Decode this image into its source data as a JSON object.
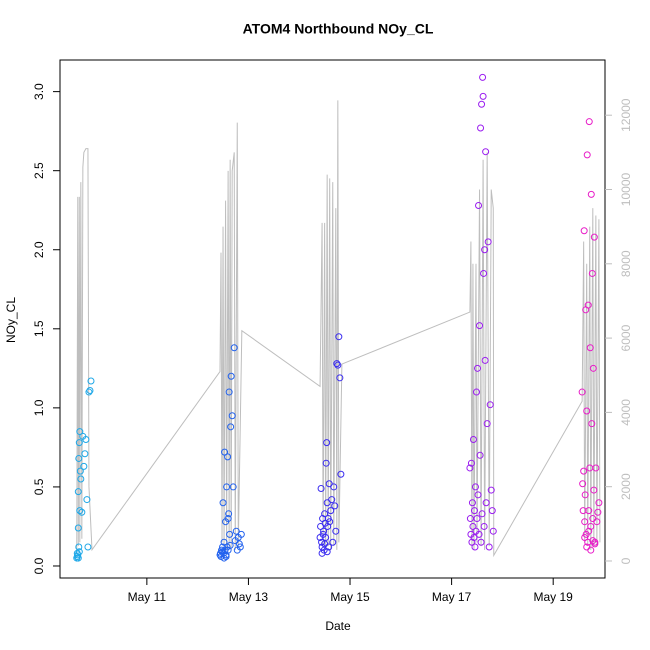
{
  "chart_data": {
    "type": "scatter",
    "title": "ATOM4 Northbound NOy_CL",
    "x_label": "Date",
    "y_label": "NOy_CL",
    "xlim": [
      9.29,
      20.02
    ],
    "ylim": [
      -0.076,
      3.2
    ],
    "y2lim": [
      -458,
      13486
    ],
    "xticks": [
      {
        "value": 11,
        "label": "May 11"
      },
      {
        "value": 13,
        "label": "May 13"
      },
      {
        "value": 15,
        "label": "May 15"
      },
      {
        "value": 17,
        "label": "May 17"
      },
      {
        "value": 19,
        "label": "May 19"
      }
    ],
    "yticks": [
      {
        "value": 0,
        "label": "0.0"
      },
      0.5,
      {
        "value": 1,
        "label": "1.0"
      },
      1.5,
      {
        "value": 2,
        "label": "2.0"
      },
      2.5,
      {
        "value": 3,
        "label": "3.0"
      }
    ],
    "y2ticks": [
      0,
      2000,
      4000,
      6000,
      8000,
      10000,
      12000
    ],
    "series": [
      {
        "type": "line",
        "axis": "y2",
        "color": "#bebebe",
        "x": [
          9.62,
          9.64,
          9.65,
          9.67,
          9.68,
          9.7,
          9.72,
          9.74,
          9.76,
          9.8,
          9.84,
          9.86,
          9.92,
          12.44,
          12.46,
          12.48,
          12.5,
          12.52,
          12.55,
          12.57,
          12.6,
          12.62,
          12.64,
          12.66,
          12.68,
          12.72,
          12.74,
          12.78,
          12.8,
          12.87,
          14.41,
          14.45,
          14.47,
          14.5,
          14.52,
          14.55,
          14.57,
          14.6,
          14.62,
          14.66,
          14.68,
          14.72,
          14.74,
          14.76,
          14.78,
          14.84,
          17.36,
          17.38,
          17.4,
          17.42,
          17.44,
          17.48,
          17.5,
          17.55,
          17.58,
          17.62,
          17.65,
          17.7,
          17.74,
          17.78,
          17.82,
          17.83,
          19.57,
          19.6,
          19.62,
          19.66,
          19.68,
          19.72,
          19.74,
          19.78,
          19.8,
          19.84,
          19.86,
          19.9,
          19.92
        ],
        "values": [
          300,
          9800,
          400,
          9800,
          500,
          10200,
          600,
          10600,
          11000,
          11100,
          11100,
          2000,
          300,
          5100,
          8300,
          500,
          9000,
          400,
          9700,
          300,
          10500,
          400,
          10800,
          300,
          10500,
          11000,
          300,
          11800,
          400,
          6200,
          4700,
          9100,
          400,
          9100,
          300,
          10400,
          400,
          10300,
          300,
          10200,
          400,
          9500,
          300,
          12400,
          500,
          5300,
          6700,
          8600,
          400,
          8000,
          300,
          8000,
          500,
          10000,
          400,
          10800,
          300,
          11000,
          400,
          10000,
          9500,
          150,
          4300,
          8600,
          500,
          8000,
          400,
          9000,
          300,
          9500,
          400,
          9300,
          400,
          9200,
          500
        ]
      },
      {
        "color": "#1ea8e8",
        "x": [
          9.62,
          9.63,
          9.63,
          9.64,
          9.65,
          9.65,
          9.66,
          9.67,
          9.68,
          9.69,
          9.7,
          9.72,
          9.74,
          9.76,
          9.78,
          9.8,
          9.82,
          9.84,
          9.86,
          9.88,
          9.9,
          9.65,
          9.66,
          9.67,
          9.68
        ],
        "values": [
          0.05,
          0.06,
          0.08,
          0.07,
          0.24,
          0.47,
          0.68,
          0.78,
          0.85,
          0.6,
          0.55,
          0.34,
          0.82,
          0.63,
          0.71,
          0.8,
          0.42,
          0.12,
          1.1,
          1.11,
          1.17,
          0.05,
          0.12,
          0.09,
          0.35
        ]
      },
      {
        "color": "#2262ee",
        "x": [
          12.44,
          12.45,
          12.46,
          12.47,
          12.48,
          12.49,
          12.5,
          12.51,
          12.52,
          12.53,
          12.54,
          12.55,
          12.56,
          12.57,
          12.58,
          12.59,
          12.6,
          12.61,
          12.62,
          12.63,
          12.64,
          12.65,
          12.66,
          12.68,
          12.7,
          12.72,
          12.74,
          12.76,
          12.78,
          12.8,
          12.82,
          12.84,
          12.86,
          12.52,
          12.56,
          12.6
        ],
        "values": [
          0.07,
          0.08,
          0.06,
          0.1,
          0.09,
          0.12,
          0.4,
          0.08,
          0.15,
          0.72,
          0.1,
          0.28,
          0.07,
          0.5,
          0.12,
          0.69,
          0.1,
          0.33,
          1.1,
          0.2,
          0.13,
          0.88,
          1.2,
          0.95,
          0.5,
          1.38,
          0.16,
          0.22,
          0.1,
          0.18,
          0.14,
          0.12,
          0.2,
          0.05,
          0.06,
          0.3
        ]
      },
      {
        "color": "#3a2cf0",
        "x": [
          14.41,
          14.42,
          14.43,
          14.44,
          14.45,
          14.46,
          14.47,
          14.48,
          14.49,
          14.5,
          14.51,
          14.52,
          14.53,
          14.54,
          14.55,
          14.56,
          14.57,
          14.58,
          14.59,
          14.6,
          14.62,
          14.64,
          14.66,
          14.68,
          14.7,
          14.72,
          14.74,
          14.76,
          14.78,
          14.8,
          14.82,
          14.45,
          14.5,
          14.55
        ],
        "values": [
          0.18,
          0.25,
          0.49,
          0.15,
          0.12,
          0.3,
          0.2,
          0.22,
          0.1,
          0.33,
          0.27,
          0.18,
          0.65,
          0.78,
          0.4,
          0.25,
          0.3,
          0.12,
          0.52,
          0.28,
          0.35,
          0.42,
          0.15,
          0.5,
          0.38,
          0.22,
          1.28,
          1.27,
          1.45,
          1.19,
          0.58,
          0.08,
          0.14,
          0.09
        ]
      },
      {
        "color": "#9a1cf0",
        "x": [
          17.36,
          17.37,
          17.38,
          17.39,
          17.4,
          17.41,
          17.42,
          17.43,
          17.44,
          17.45,
          17.46,
          17.47,
          17.48,
          17.49,
          17.5,
          17.51,
          17.52,
          17.53,
          17.54,
          17.55,
          17.56,
          17.57,
          17.58,
          17.59,
          17.6,
          17.61,
          17.62,
          17.63,
          17.64,
          17.65,
          17.66,
          17.67,
          17.68,
          17.7,
          17.72,
          17.74,
          17.76,
          17.78,
          17.8,
          17.82
        ],
        "values": [
          0.62,
          0.3,
          0.2,
          0.65,
          0.15,
          0.4,
          0.25,
          0.8,
          0.18,
          0.35,
          0.12,
          0.5,
          0.22,
          1.1,
          0.3,
          1.25,
          0.45,
          2.28,
          0.2,
          1.52,
          0.7,
          2.77,
          0.15,
          2.92,
          0.33,
          3.09,
          2.97,
          1.85,
          0.25,
          2.0,
          1.3,
          2.62,
          0.4,
          0.9,
          2.05,
          0.12,
          1.02,
          0.48,
          0.35,
          0.22
        ]
      },
      {
        "color": "#e81cc8",
        "x": [
          19.57,
          19.58,
          19.59,
          19.6,
          19.61,
          19.62,
          19.63,
          19.64,
          19.65,
          19.66,
          19.67,
          19.68,
          19.69,
          19.7,
          19.71,
          19.72,
          19.73,
          19.74,
          19.75,
          19.76,
          19.77,
          19.78,
          19.79,
          19.8,
          19.81,
          19.82,
          19.84,
          19.86,
          19.88,
          19.9,
          19.62,
          19.66,
          19.7,
          19.74,
          19.78,
          19.82
        ],
        "values": [
          1.1,
          0.52,
          0.35,
          0.6,
          2.12,
          0.28,
          0.45,
          1.62,
          0.2,
          0.98,
          2.6,
          0.15,
          1.65,
          0.35,
          2.81,
          0.62,
          1.38,
          0.25,
          2.35,
          0.9,
          1.85,
          0.3,
          1.25,
          0.48,
          2.08,
          0.15,
          0.62,
          0.28,
          0.34,
          0.4,
          0.18,
          0.12,
          0.22,
          0.1,
          0.16,
          0.14
        ]
      }
    ]
  }
}
